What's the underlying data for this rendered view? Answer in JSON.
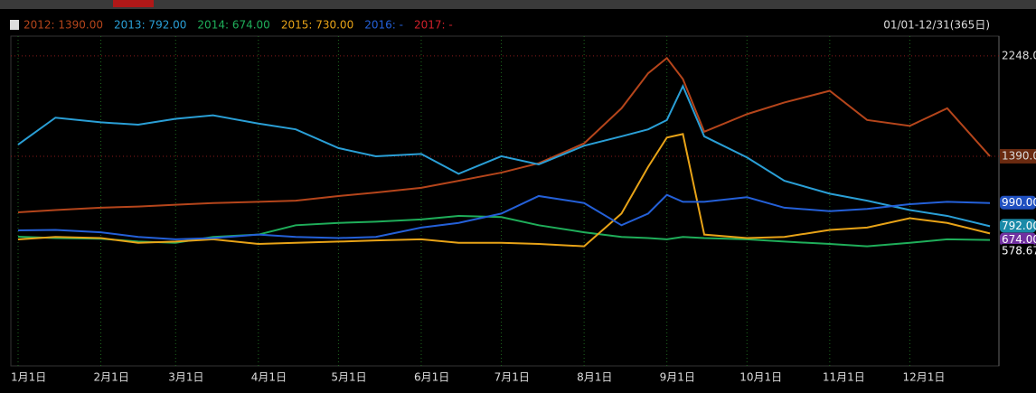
{
  "chart_data": {
    "type": "line",
    "range_label": "01/01-12/31(365日)",
    "x": [
      1,
      15,
      32,
      46,
      60,
      74,
      91,
      105,
      121,
      135,
      152,
      166,
      182,
      196,
      213,
      227,
      237,
      244,
      250,
      258,
      274,
      288,
      305,
      319,
      335,
      349,
      365
    ],
    "xlim": [
      1,
      366
    ],
    "xticks": [
      {
        "value": 1,
        "label": "1月1日"
      },
      {
        "value": 32,
        "label": "2月1日"
      },
      {
        "value": 60,
        "label": "3月1日"
      },
      {
        "value": 91,
        "label": "4月1日"
      },
      {
        "value": 121,
        "label": "5月1日"
      },
      {
        "value": 152,
        "label": "6月1日"
      },
      {
        "value": 182,
        "label": "7月1日"
      },
      {
        "value": 213,
        "label": "8月1日"
      },
      {
        "value": 244,
        "label": "9月1日"
      },
      {
        "value": 274,
        "label": "10月1日"
      },
      {
        "value": 305,
        "label": "11月1日"
      },
      {
        "value": 335,
        "label": "12月1日"
      }
    ],
    "ylim": [
      -403,
      2456
    ],
    "yticks": [
      {
        "value": 2248,
        "label": "2248.0"
      },
      {
        "value": 1390,
        "label": "1390.0"
      }
    ],
    "grid": true,
    "series": [
      {
        "name": "2012: 1390.00",
        "color": "#b5451b",
        "values": [
          911,
          930,
          950,
          960,
          975,
          990,
          1000,
          1010,
          1050,
          1080,
          1120,
          1180,
          1250,
          1330,
          1500,
          1800,
          2100,
          2230,
          2050,
          1600,
          1750,
          1850,
          1950,
          1700,
          1650,
          1800,
          1390
        ]
      },
      {
        "name": "2013: 792.00",
        "color": "#2a9fd6",
        "values": [
          1490,
          1720,
          1680,
          1660,
          1710,
          1740,
          1670,
          1620,
          1460,
          1390,
          1410,
          1240,
          1390,
          1320,
          1480,
          1560,
          1620,
          1700,
          1990,
          1560,
          1380,
          1180,
          1070,
          1010,
          930,
          880,
          792
        ]
      },
      {
        "name": "2014: 674.00",
        "color": "#1fae5a",
        "values": [
          702,
          690,
          685,
          660,
          650,
          700,
          720,
          800,
          820,
          830,
          850,
          880,
          870,
          800,
          740,
          700,
          690,
          680,
          700,
          690,
          680,
          660,
          640,
          620,
          650,
          680,
          674
        ]
      },
      {
        "name": "2015: 730.00",
        "color": "#e8a317",
        "values": [
          679,
          700,
          690,
          650,
          660,
          680,
          640,
          650,
          660,
          670,
          680,
          650,
          650,
          640,
          620,
          900,
          1300,
          1550,
          1580,
          720,
          690,
          700,
          760,
          780,
          860,
          820,
          730
        ]
      },
      {
        "name": "2016: -",
        "color": "#2460d8",
        "values": [
          756,
          760,
          740,
          700,
          680,
          690,
          720,
          700,
          690,
          700,
          780,
          820,
          900,
          1050,
          990,
          800,
          900,
          1060,
          1000,
          1000,
          1040,
          950,
          920,
          940,
          980,
          1000,
          990
        ]
      },
      {
        "name": "2017: -",
        "color": "#d0202a",
        "values": [
          null,
          null,
          null,
          null,
          null,
          null,
          null,
          null,
          null,
          null,
          null,
          null,
          null,
          null,
          null,
          null,
          null,
          null,
          null,
          null,
          null,
          null,
          null,
          null,
          null,
          null,
          null
        ]
      }
    ],
    "axis_badges": [
      {
        "value": 990,
        "label": "990.00",
        "color": "#2050c0"
      },
      {
        "value": 792,
        "label": "792.00",
        "color": "#1a8aa8"
      },
      {
        "value": 674,
        "label": "674.00",
        "color": "#7030a0"
      },
      {
        "value": 578.67,
        "label": "578.67",
        "color": "#000000"
      }
    ]
  }
}
